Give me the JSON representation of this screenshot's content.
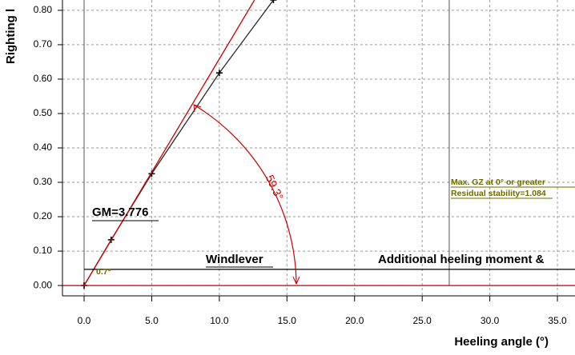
{
  "chart_data": {
    "type": "line",
    "x_label": "Heeling angle (°)",
    "y_label": "Righting l",
    "xlim": [
      -1.6,
      36.3
    ],
    "ylim": [
      -0.03,
      0.83
    ],
    "xticks": [
      {
        "value": 0,
        "label": "0.0"
      },
      {
        "value": 5,
        "label": "5.0"
      },
      {
        "value": 10,
        "label": "10.0"
      },
      {
        "value": 15,
        "label": "15.0"
      },
      {
        "value": 20,
        "label": "20.0"
      },
      {
        "value": 25,
        "label": "25.0"
      },
      {
        "value": 30,
        "label": "30.0"
      },
      {
        "value": 35,
        "label": "35.0"
      }
    ],
    "yticks": [
      {
        "value": 0,
        "label": "0.00"
      },
      {
        "value": 0.1,
        "label": "0.10"
      },
      {
        "value": 0.2,
        "label": "0.20"
      },
      {
        "value": 0.3,
        "label": "0.30"
      },
      {
        "value": 0.4,
        "label": "0.40"
      },
      {
        "value": 0.5,
        "label": "0.50"
      },
      {
        "value": 0.6,
        "label": "0.60"
      },
      {
        "value": 0.7,
        "label": "0.70"
      },
      {
        "value": 0.8,
        "label": "0.80"
      }
    ],
    "grid": true,
    "series": [
      {
        "x": [
          0,
          2,
          5,
          10,
          14
        ],
        "values": [
          0,
          0.133,
          0.325,
          0.618,
          0.83
        ],
        "color": "#2a2a2a",
        "markers": true
      },
      {
        "x": [
          0,
          12.6
        ],
        "values": [
          0,
          0.83
        ],
        "color": "#cc0000",
        "markers": false
      },
      {
        "x": [
          0,
          36.3
        ],
        "values": [
          0.047,
          0.047
        ],
        "color": "#000000",
        "markers": false
      },
      {
        "x": [
          -1.6,
          36.3
        ],
        "values": [
          0,
          0
        ],
        "color": "#cc0000",
        "markers": false
      }
    ],
    "vlines": [
      {
        "value": 0,
        "color": "#555555"
      },
      {
        "value": 27,
        "color": "#555555"
      }
    ],
    "annotations": [
      "GM=3.776",
      "Windlever",
      "Additional heeling moment &",
      "Max. GZ at 0° or greater",
      "Residual stability=1.084",
      "59.3°",
      "0.7°"
    ]
  }
}
